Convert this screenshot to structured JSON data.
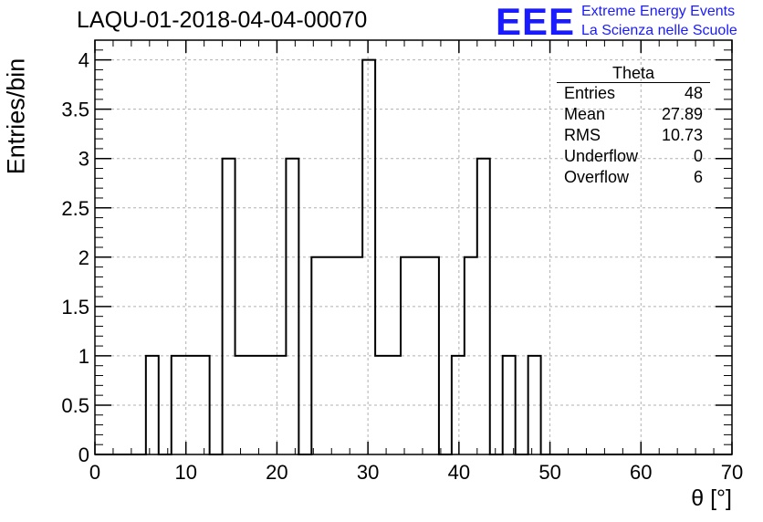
{
  "header": {
    "title": "LAQU-01-2018-04-04-00070",
    "logo_mark": "EEE",
    "logo_line1": "Extreme Energy Events",
    "logo_line2": "La Scienza nelle Scuole"
  },
  "stats_box": {
    "title": "Theta",
    "rows": [
      {
        "label": "Entries",
        "value": "48"
      },
      {
        "label": "Mean",
        "value": "27.89"
      },
      {
        "label": "RMS",
        "value": "10.73"
      },
      {
        "label": "Underflow",
        "value": "0"
      },
      {
        "label": "Overflow",
        "value": "6"
      }
    ]
  },
  "chart_data": {
    "type": "bar",
    "style": "step-histogram",
    "title": "LAQU-01-2018-04-04-00070",
    "xlabel": "θ [°]",
    "ylabel": "Entries/bin",
    "xlim": [
      0,
      70
    ],
    "ylim": [
      0,
      4.2
    ],
    "bin_width": 1.4,
    "x_ticks": [
      "0",
      "10",
      "20",
      "30",
      "40",
      "50",
      "60",
      "70"
    ],
    "y_ticks": [
      "0",
      "0.5",
      "1",
      "1.5",
      "2",
      "2.5",
      "3",
      "3.5",
      "4"
    ],
    "y_tick_values": [
      0,
      0.5,
      1,
      1.5,
      2,
      2.5,
      3,
      3.5,
      4
    ],
    "x_tick_values": [
      0,
      10,
      20,
      30,
      40,
      50,
      60,
      70
    ],
    "grid": true,
    "line_color": "#000000",
    "grid_color": "#b0b0b0",
    "values": [
      0,
      0,
      0,
      0,
      1,
      0,
      1,
      1,
      1,
      0,
      3,
      1,
      1,
      1,
      1,
      3,
      0,
      2,
      2,
      2,
      2,
      4,
      1,
      1,
      2,
      2,
      2,
      0,
      1,
      2,
      3,
      0,
      1,
      0,
      1,
      0,
      0,
      0,
      0,
      0,
      0,
      0,
      0,
      0,
      0,
      0,
      0,
      0,
      0,
      0
    ]
  }
}
